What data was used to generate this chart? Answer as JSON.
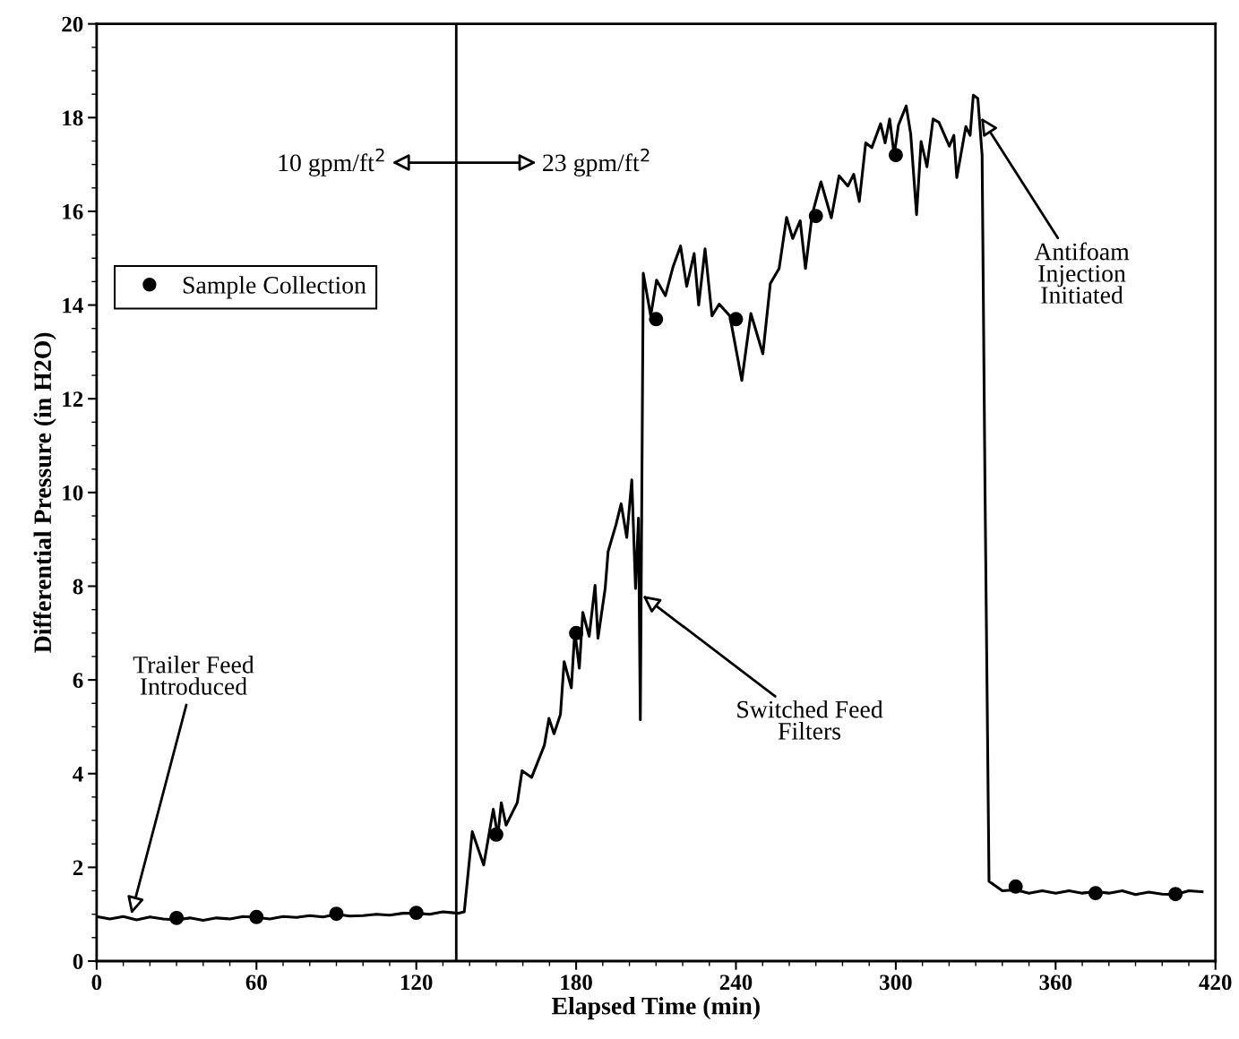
{
  "chart_data": {
    "type": "line",
    "xlabel": "Elapsed Time (min)",
    "ylabel": "Differential Pressure (in H2O)",
    "xlim": [
      0,
      420
    ],
    "xticks": [
      0,
      60,
      120,
      180,
      240,
      300,
      360,
      420
    ],
    "ylim": [
      0,
      20
    ],
    "yticks": [
      0,
      2,
      4,
      6,
      8,
      10,
      12,
      14,
      16,
      18,
      20
    ],
    "grid": false,
    "legend": "top left",
    "series": [
      {
        "color": "#000000",
        "marker": "none",
        "line_style": "solid",
        "x": [
          0,
          5,
          10,
          15,
          20,
          25,
          30,
          35,
          40,
          45,
          50,
          55,
          60,
          65,
          70,
          75,
          80,
          85,
          90,
          95,
          100,
          105,
          110,
          115,
          120,
          125,
          130,
          134,
          135.6,
          138,
          141,
          145.3,
          148.9,
          150.6,
          151.9,
          153.7,
          157.9,
          159.7,
          163.3,
          168.1,
          169.8,
          171.7,
          174.1,
          175.5,
          178.2,
          179.5,
          181.2,
          182.5,
          184.9,
          187.1,
          188.2,
          190.9,
          192,
          195,
          196.9,
          199,
          200.9,
          202.3,
          203.4,
          204.1,
          205.2,
          208,
          210.2,
          213.5,
          216.4,
          219.2,
          221.5,
          224.3,
          226,
          228.4,
          231,
          233.7,
          237.7,
          242.2,
          245.6,
          250.1,
          252.9,
          256.2,
          259,
          261.3,
          264.1,
          266.1,
          268.6,
          271.9,
          275.8,
          278.7,
          282,
          284.2,
          286.3,
          288.7,
          291,
          294.3,
          296,
          297.7,
          299.4,
          301,
          303.9,
          305.6,
          307.8,
          309.5,
          311.7,
          314,
          316.2,
          320.1,
          321.8,
          322.9,
          326.3,
          327.9,
          329.1,
          330.8,
          332.4,
          333.5,
          335,
          340,
          345,
          350,
          355,
          360,
          365,
          370,
          375,
          380,
          385,
          390,
          395,
          400,
          405,
          410,
          415
        ],
        "values": [
          0.95,
          0.9,
          0.95,
          0.88,
          0.94,
          0.9,
          0.88,
          0.92,
          0.87,
          0.92,
          0.9,
          0.95,
          0.93,
          0.9,
          0.95,
          0.93,
          0.97,
          0.94,
          1.0,
          0.96,
          0.97,
          1.0,
          0.98,
          1.02,
          1.02,
          1.0,
          1.05,
          1.03,
          1.02,
          1.05,
          2.76,
          2.05,
          3.24,
          2.66,
          3.38,
          2.9,
          3.38,
          4.06,
          3.92,
          4.61,
          5.18,
          4.85,
          5.26,
          6.39,
          5.83,
          7.04,
          6.25,
          7.44,
          6.93,
          8.02,
          6.89,
          7.95,
          8.74,
          9.32,
          9.76,
          9.04,
          10.27,
          7.95,
          9.45,
          5.15,
          14.68,
          13.77,
          14.53,
          14.2,
          14.82,
          15.26,
          14.4,
          15.1,
          14.0,
          15.2,
          13.77,
          14.02,
          13.77,
          12.39,
          13.82,
          12.96,
          14.46,
          14.78,
          15.87,
          15.42,
          15.8,
          14.78,
          15.93,
          16.63,
          15.86,
          16.76,
          16.54,
          16.79,
          16.21,
          17.46,
          17.36,
          17.87,
          17.46,
          17.97,
          17.2,
          17.84,
          18.25,
          17.65,
          15.93,
          17.49,
          16.95,
          17.97,
          17.9,
          17.39,
          17.62,
          16.72,
          17.81,
          17.62,
          18.48,
          18.41,
          17.2,
          10.0,
          1.7,
          1.5,
          1.52,
          1.45,
          1.5,
          1.45,
          1.5,
          1.45,
          1.48,
          1.45,
          1.5,
          1.42,
          1.47,
          1.43,
          1.42,
          1.5,
          1.48
        ]
      },
      {
        "type": "scatter",
        "name": "Sample Collection",
        "color": "#000000",
        "marker": "circle",
        "x": [
          30,
          60,
          90,
          120,
          150,
          180,
          210,
          240,
          270,
          300,
          345,
          375,
          405
        ],
        "values": [
          0.92,
          0.94,
          1.01,
          1.03,
          2.7,
          7.0,
          13.7,
          13.7,
          15.9,
          17.2,
          1.59,
          1.45,
          1.43
        ]
      }
    ],
    "ref_lines": [
      {
        "axis": "x",
        "value": 135,
        "color": "#000000",
        "line_style": "solid"
      }
    ],
    "annotations": [
      {
        "text": "Trailer Feed\nIntroduced",
        "x": 13,
        "y": 1.0
      },
      {
        "text": "Switched Feed\nFilters",
        "x": 205,
        "y": 7.8
      },
      {
        "text": "Antifoam\nInjection\nInitiated",
        "x": 332,
        "y": 18.0
      },
      "10 gpm/ft$^{2}$",
      "23 gpm/ft$^{2}$"
    ]
  }
}
